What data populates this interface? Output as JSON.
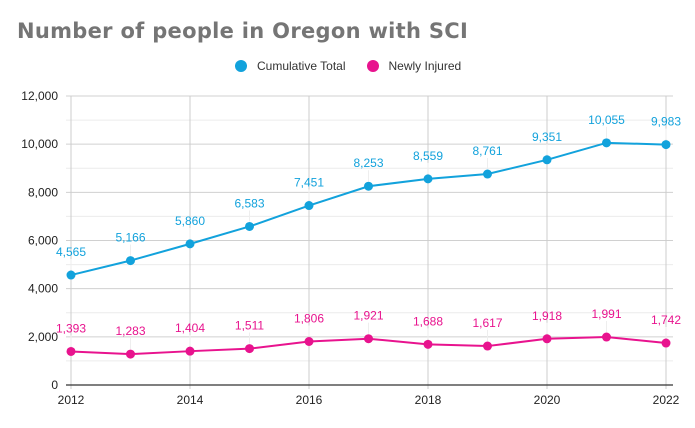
{
  "chart_data": {
    "type": "line",
    "title": "Number of people in Oregon with SCI",
    "xlabel": "",
    "ylabel": "",
    "x": [
      2012,
      2013,
      2014,
      2015,
      2016,
      2017,
      2018,
      2019,
      2020,
      2021,
      2022
    ],
    "x_tick_labels": [
      "2012",
      "2014",
      "2016",
      "2018",
      "2020",
      "2022"
    ],
    "y_tick_labels": [
      "0",
      "2,000",
      "4,000",
      "6,000",
      "8,000",
      "10,000",
      "12,000"
    ],
    "ylim": [
      0,
      12000
    ],
    "grid": true,
    "legend_position": "top",
    "series": [
      {
        "name": "Cumulative Total",
        "color": "#12A2DC",
        "values": [
          4565,
          5166,
          5860,
          6583,
          7451,
          8253,
          8559,
          8761,
          9351,
          10055,
          9983
        ],
        "labels": [
          "4,565",
          "5,166",
          "5,860",
          "6,583",
          "7,451",
          "8,253",
          "8,559",
          "8,761",
          "9,351",
          "10,055",
          "9,983"
        ]
      },
      {
        "name": "Newly Injured",
        "color": "#E8138E",
        "values": [
          1393,
          1283,
          1404,
          1511,
          1806,
          1921,
          1688,
          1617,
          1918,
          1991,
          1742
        ],
        "labels": [
          "1,393",
          "1,283",
          "1,404",
          "1,511",
          "1,806",
          "1,921",
          "1,688",
          "1,617",
          "1,918",
          "1,991",
          "1,742"
        ]
      }
    ]
  }
}
